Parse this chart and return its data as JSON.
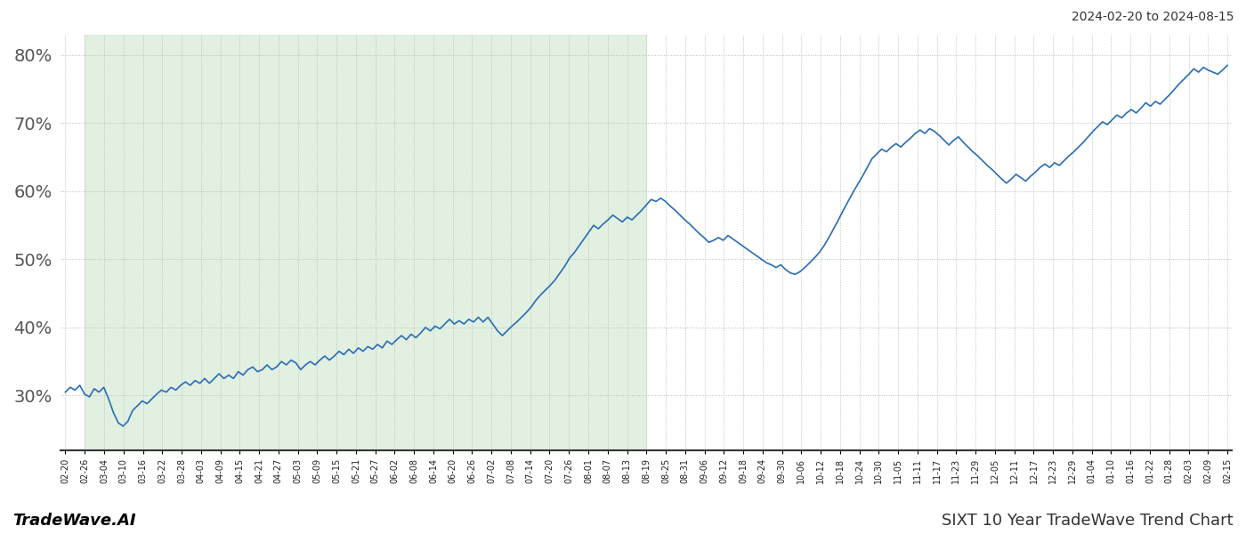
{
  "title_right": "2024-02-20 to 2024-08-15",
  "footer_left": "TradeWave.AI",
  "footer_right": "SIXT 10 Year TradeWave Trend Chart",
  "ylim": [
    22,
    83
  ],
  "yticks": [
    30,
    40,
    50,
    60,
    70,
    80
  ],
  "line_color": "#2a6cb5",
  "line_width": 1.2,
  "shade_color": "#d6ead7",
  "shade_alpha": 0.7,
  "background_color": "#ffffff",
  "grid_color": "#b0c4b0",
  "grid_style": ":",
  "x_labels": [
    "02-20",
    "02-26",
    "03-04",
    "03-10",
    "03-16",
    "03-22",
    "03-28",
    "04-03",
    "04-09",
    "04-15",
    "04-21",
    "04-27",
    "05-03",
    "05-09",
    "05-15",
    "05-21",
    "05-27",
    "06-02",
    "06-08",
    "06-14",
    "06-20",
    "06-26",
    "07-02",
    "07-08",
    "07-14",
    "07-20",
    "07-26",
    "08-01",
    "08-07",
    "08-13",
    "08-19",
    "08-25",
    "08-31",
    "09-06",
    "09-12",
    "09-18",
    "09-24",
    "09-30",
    "10-06",
    "10-12",
    "10-18",
    "10-24",
    "10-30",
    "11-05",
    "11-11",
    "11-17",
    "11-23",
    "11-29",
    "12-05",
    "12-11",
    "12-17",
    "12-23",
    "12-29",
    "01-04",
    "01-10",
    "01-16",
    "01-22",
    "01-28",
    "02-03",
    "02-09",
    "02-15"
  ],
  "shade_start_label": "02-26",
  "shade_end_label": "08-19",
  "values": [
    30.5,
    31.2,
    30.8,
    31.5,
    30.2,
    29.8,
    31.0,
    30.5,
    31.2,
    29.5,
    27.5,
    26.0,
    25.5,
    26.2,
    27.8,
    28.5,
    29.2,
    28.8,
    29.5,
    30.2,
    30.8,
    30.5,
    31.2,
    30.8,
    31.5,
    32.0,
    31.5,
    32.2,
    31.8,
    32.5,
    31.8,
    32.5,
    33.2,
    32.5,
    33.0,
    32.5,
    33.5,
    33.0,
    33.8,
    34.2,
    33.5,
    33.8,
    34.5,
    33.8,
    34.2,
    35.0,
    34.5,
    35.2,
    34.8,
    33.8,
    34.5,
    35.0,
    34.5,
    35.2,
    35.8,
    35.2,
    35.8,
    36.5,
    36.0,
    36.8,
    36.2,
    37.0,
    36.5,
    37.2,
    36.8,
    37.5,
    37.0,
    38.0,
    37.5,
    38.2,
    38.8,
    38.2,
    39.0,
    38.5,
    39.2,
    40.0,
    39.5,
    40.2,
    39.8,
    40.5,
    41.2,
    40.5,
    41.0,
    40.5,
    41.2,
    40.8,
    41.5,
    40.8,
    41.5,
    40.5,
    39.5,
    38.8,
    39.5,
    40.2,
    40.8,
    41.5,
    42.2,
    43.0,
    44.0,
    44.8,
    45.5,
    46.2,
    47.0,
    48.0,
    49.0,
    50.2,
    51.0,
    52.0,
    53.0,
    54.0,
    55.0,
    54.5,
    55.2,
    55.8,
    56.5,
    56.0,
    55.5,
    56.2,
    55.8,
    56.5,
    57.2,
    58.0,
    58.8,
    58.5,
    59.0,
    58.5,
    57.8,
    57.2,
    56.5,
    55.8,
    55.2,
    54.5,
    53.8,
    53.2,
    52.5,
    52.8,
    53.2,
    52.8,
    53.5,
    53.0,
    52.5,
    52.0,
    51.5,
    51.0,
    50.5,
    50.0,
    49.5,
    49.2,
    48.8,
    49.2,
    48.5,
    48.0,
    47.8,
    48.2,
    48.8,
    49.5,
    50.2,
    51.0,
    52.0,
    53.2,
    54.5,
    55.8,
    57.2,
    58.5,
    59.8,
    61.0,
    62.2,
    63.5,
    64.8,
    65.5,
    66.2,
    65.8,
    66.5,
    67.0,
    66.5,
    67.2,
    67.8,
    68.5,
    69.0,
    68.5,
    69.2,
    68.8,
    68.2,
    67.5,
    66.8,
    67.5,
    68.0,
    67.2,
    66.5,
    65.8,
    65.2,
    64.5,
    63.8,
    63.2,
    62.5,
    61.8,
    61.2,
    61.8,
    62.5,
    62.0,
    61.5,
    62.2,
    62.8,
    63.5,
    64.0,
    63.5,
    64.2,
    63.8,
    64.5,
    65.2,
    65.8,
    66.5,
    67.2,
    68.0,
    68.8,
    69.5,
    70.2,
    69.8,
    70.5,
    71.2,
    70.8,
    71.5,
    72.0,
    71.5,
    72.2,
    73.0,
    72.5,
    73.2,
    72.8,
    73.5,
    74.2,
    75.0,
    75.8,
    76.5,
    77.2,
    78.0,
    77.5,
    78.2,
    77.8,
    77.5,
    77.2,
    77.8,
    78.5
  ]
}
